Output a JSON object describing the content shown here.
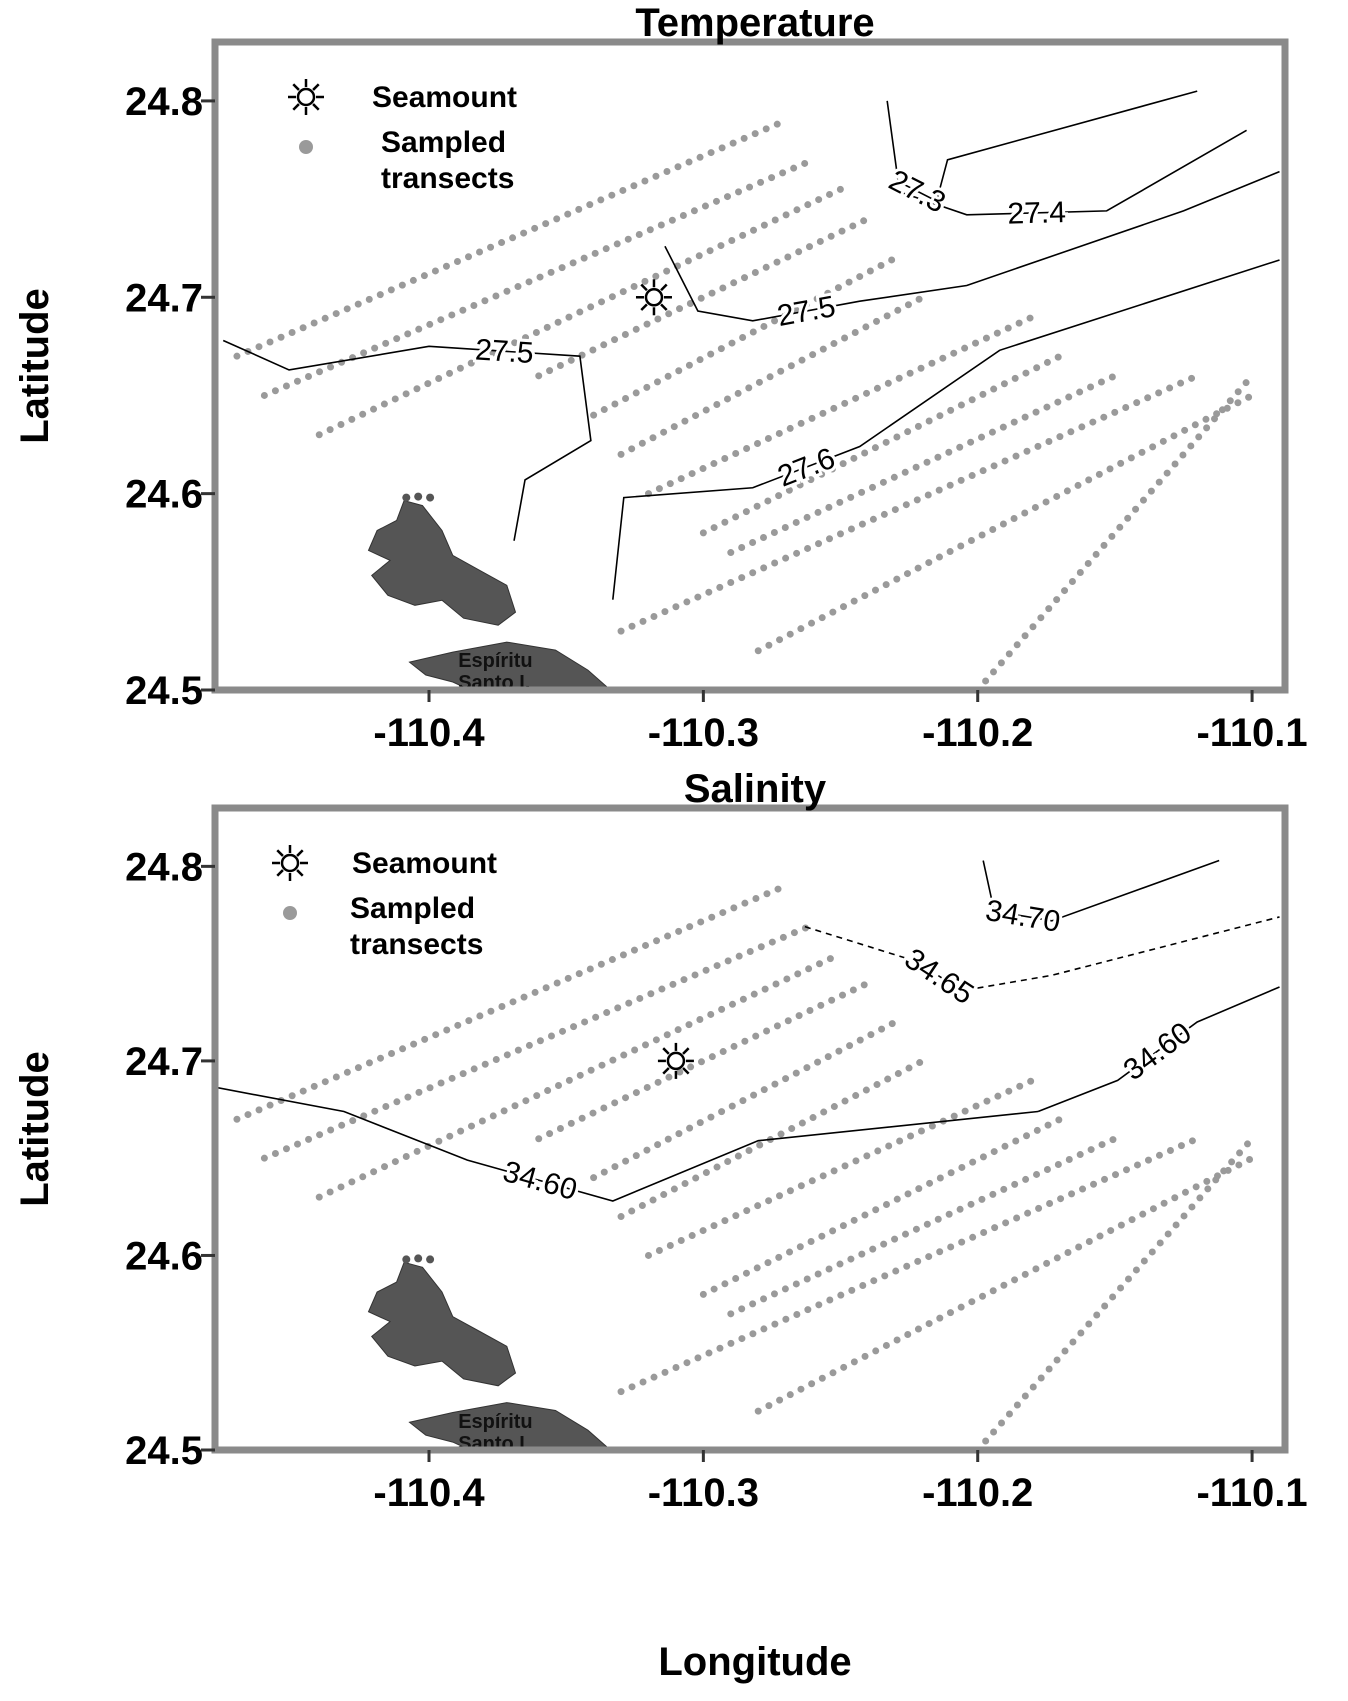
{
  "chart_data": [
    {
      "type": "contour",
      "title": "Temperature",
      "ylabel": "Latitude",
      "xlim": [
        -110.478,
        -110.088
      ],
      "ylim": [
        24.5,
        24.83
      ],
      "xticks": [
        -110.4,
        -110.3,
        -110.2,
        -110.1
      ],
      "yticks": [
        24.5,
        24.6,
        24.7,
        24.8
      ],
      "legend": {
        "seamount": "Seamount",
        "transects": "Sampled transects"
      },
      "island_label": "Espíritu Santo I.",
      "seamount": {
        "x": -110.318,
        "y": 24.7
      },
      "transect_color": "#9a9a9a",
      "transects": [
        {
          "x": [
            -110.47,
            -110.27
          ],
          "y": [
            24.67,
            24.79
          ]
        },
        {
          "x": [
            -110.46,
            -110.26
          ],
          "y": [
            24.65,
            24.77
          ]
        },
        {
          "x": [
            -110.44,
            -110.25
          ],
          "y": [
            24.63,
            24.755
          ]
        },
        {
          "x": [
            -110.36,
            -110.24
          ],
          "y": [
            24.66,
            24.74
          ]
        },
        {
          "x": [
            -110.34,
            -110.23
          ],
          "y": [
            24.64,
            24.72
          ]
        },
        {
          "x": [
            -110.33,
            -110.22
          ],
          "y": [
            24.62,
            24.7
          ]
        },
        {
          "x": [
            -110.32,
            -110.18
          ],
          "y": [
            24.6,
            24.69
          ]
        },
        {
          "x": [
            -110.3,
            -110.17
          ],
          "y": [
            24.58,
            24.67
          ]
        },
        {
          "x": [
            -110.29,
            -110.15
          ],
          "y": [
            24.57,
            24.66
          ]
        },
        {
          "x": [
            -110.33,
            -110.12
          ],
          "y": [
            24.53,
            24.66
          ]
        },
        {
          "x": [
            -110.28,
            -110.1
          ],
          "y": [
            24.52,
            24.65
          ]
        },
        {
          "x": [
            -110.2,
            -110.1
          ],
          "y": [
            24.5,
            24.66
          ]
        }
      ],
      "contours": [
        {
          "label": "27.3",
          "dash": false,
          "x": [
            -110.233,
            -110.229,
            -110.215,
            -110.211,
            -110.12
          ],
          "y": [
            24.8,
            24.759,
            24.749,
            24.77,
            24.805
          ]
        },
        {
          "label": "27.4",
          "dash": false,
          "x": [
            -110.102,
            -110.153,
            -110.204,
            -110.227
          ],
          "y": [
            24.785,
            24.744,
            24.742,
            24.753
          ]
        },
        {
          "label": "27.5",
          "dash": false,
          "x": [
            -110.314,
            -110.302,
            -110.282,
            -110.243,
            -110.204,
            -110.125,
            -110.09
          ],
          "y": [
            24.726,
            24.693,
            24.688,
            24.698,
            24.706,
            24.744,
            24.764
          ]
        },
        {
          "label": "27.5",
          "dash": false,
          "x": [
            -110.475,
            -110.451,
            -110.4,
            -110.345,
            -110.341,
            -110.365,
            -110.369
          ],
          "y": [
            24.678,
            24.663,
            24.675,
            24.67,
            24.627,
            24.607,
            24.576
          ]
        },
        {
          "label": "27.6",
          "dash": false,
          "x": [
            -110.333,
            -110.329,
            -110.282,
            -110.243,
            -110.192,
            -110.09
          ],
          "y": [
            24.546,
            24.598,
            24.603,
            24.624,
            24.673,
            24.719
          ]
        }
      ]
    },
    {
      "type": "contour",
      "title": "Salinity",
      "ylabel": "Latitude",
      "xlabel": "Longitude",
      "xlim": [
        -110.478,
        -110.088
      ],
      "ylim": [
        24.5,
        24.83
      ],
      "xticks": [
        -110.4,
        -110.3,
        -110.2,
        -110.1
      ],
      "yticks": [
        24.5,
        24.6,
        24.7,
        24.8
      ],
      "legend": {
        "seamount": "Seamount",
        "transects": "Sampled transects"
      },
      "island_label": "Espíritu Santo I.",
      "seamount": {
        "x": -110.31,
        "y": 24.7
      },
      "transect_color": "#9a9a9a",
      "transects": [
        {
          "x": [
            -110.47,
            -110.27
          ],
          "y": [
            24.67,
            24.79
          ]
        },
        {
          "x": [
            -110.46,
            -110.26
          ],
          "y": [
            24.65,
            24.77
          ]
        },
        {
          "x": [
            -110.44,
            -110.25
          ],
          "y": [
            24.63,
            24.755
          ]
        },
        {
          "x": [
            -110.36,
            -110.24
          ],
          "y": [
            24.66,
            24.74
          ]
        },
        {
          "x": [
            -110.34,
            -110.23
          ],
          "y": [
            24.64,
            24.72
          ]
        },
        {
          "x": [
            -110.33,
            -110.22
          ],
          "y": [
            24.62,
            24.7
          ]
        },
        {
          "x": [
            -110.32,
            -110.18
          ],
          "y": [
            24.6,
            24.69
          ]
        },
        {
          "x": [
            -110.3,
            -110.17
          ],
          "y": [
            24.58,
            24.67
          ]
        },
        {
          "x": [
            -110.29,
            -110.15
          ],
          "y": [
            24.57,
            24.66
          ]
        },
        {
          "x": [
            -110.33,
            -110.12
          ],
          "y": [
            24.53,
            24.66
          ]
        },
        {
          "x": [
            -110.28,
            -110.1
          ],
          "y": [
            24.52,
            24.65
          ]
        },
        {
          "x": [
            -110.2,
            -110.1
          ],
          "y": [
            24.5,
            24.66
          ]
        }
      ],
      "contours": [
        {
          "label": "34.70",
          "dash": false,
          "x": [
            -110.198,
            -110.194,
            -110.173,
            -110.112
          ],
          "y": [
            24.803,
            24.777,
            24.772,
            24.803
          ]
        },
        {
          "label": "34.65",
          "dash": true,
          "x": [
            -110.263,
            -110.222,
            -110.206,
            -110.173,
            -110.09
          ],
          "y": [
            24.769,
            24.751,
            24.736,
            24.744,
            24.774
          ]
        },
        {
          "label": "34.60",
          "dash": false,
          "x": [
            -110.48,
            -110.431,
            -110.386,
            -110.333,
            -110.28,
            -110.178
          ],
          "y": [
            24.687,
            24.674,
            24.649,
            24.628,
            24.659,
            24.674
          ]
        },
        {
          "label": "34.60",
          "dash": false,
          "x": [
            -110.178,
            -110.149,
            -110.12,
            -110.09
          ],
          "y": [
            24.674,
            24.69,
            24.72,
            24.738
          ]
        }
      ]
    }
  ]
}
